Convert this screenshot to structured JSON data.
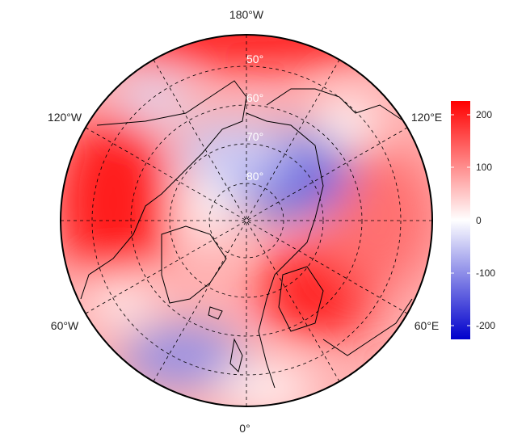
{
  "map": {
    "projection": "north polar stereographic",
    "longitude_labels": {
      "top": "180°W",
      "bottom": "0°",
      "upper_left": "120°W",
      "upper_right": "120°E",
      "lower_left": "60°W",
      "lower_right": "60°E"
    },
    "latitude_labels": [
      "50°",
      "60°",
      "70°",
      "80°"
    ]
  },
  "colorbar": {
    "min": -225,
    "max": 225,
    "ticks": [
      "200",
      "100",
      "0",
      "-100",
      "-200"
    ],
    "tick_values": [
      200,
      100,
      0,
      -100,
      -200
    ],
    "colors": {
      "low": "#0000cc",
      "mid": "#ffffff",
      "high": "#ff0000"
    }
  }
}
